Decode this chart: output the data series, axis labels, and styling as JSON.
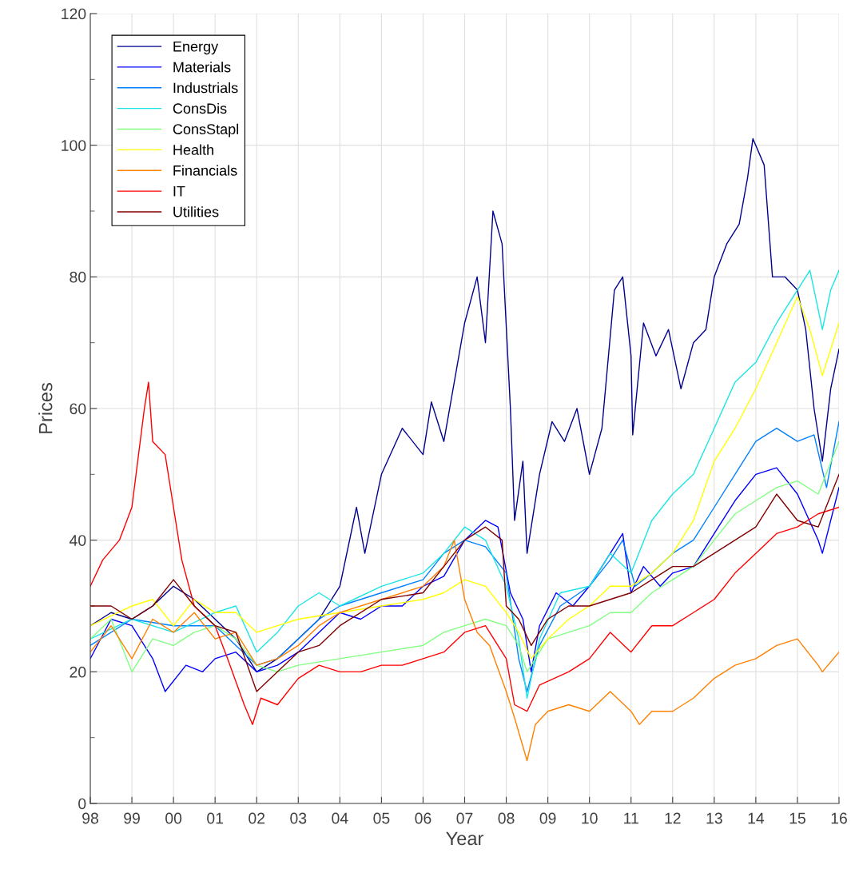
{
  "chart_data": {
    "type": "line",
    "xlabel": "Year",
    "ylabel": "Prices",
    "xlim": [
      1998,
      2016
    ],
    "ylim": [
      0,
      120
    ],
    "xticks": [
      {
        "value": 1998,
        "label": "98"
      },
      {
        "value": 1999,
        "label": "99"
      },
      {
        "value": 2000,
        "label": "00"
      },
      {
        "value": 2001,
        "label": "01"
      },
      {
        "value": 2002,
        "label": "02"
      },
      {
        "value": 2003,
        "label": "03"
      },
      {
        "value": 2004,
        "label": "04"
      },
      {
        "value": 2005,
        "label": "05"
      },
      {
        "value": 2006,
        "label": "06"
      },
      {
        "value": 2007,
        "label": "07"
      },
      {
        "value": 2008,
        "label": "08"
      },
      {
        "value": 2009,
        "label": "09"
      },
      {
        "value": 2010,
        "label": "10"
      },
      {
        "value": 2011,
        "label": "11"
      },
      {
        "value": 2012,
        "label": "12"
      },
      {
        "value": 2013,
        "label": "13"
      },
      {
        "value": 2014,
        "label": "14"
      },
      {
        "value": 2015,
        "label": "15"
      },
      {
        "value": 2016,
        "label": "16"
      }
    ],
    "yticks": [
      0,
      {
        "value": 10,
        "label": null
      },
      20,
      {
        "value": 30,
        "label": null
      },
      40,
      {
        "value": 50,
        "label": null
      },
      60,
      {
        "value": 70,
        "label": null
      },
      80,
      {
        "value": 90,
        "label": null
      },
      100,
      {
        "value": 110,
        "label": null
      },
      120
    ],
    "grid": true,
    "legend": "top left",
    "marker": "none",
    "line_style": "solid",
    "series": [
      {
        "name": "Energy",
        "color": "#00008f",
        "x": [
          1998,
          1998.5,
          1999,
          1999.5,
          2000,
          2000.5,
          2001,
          2001.5,
          2002,
          2002.5,
          2003,
          2003.5,
          2004,
          2004.4,
          2004.6,
          2005,
          2005.5,
          2006,
          2006.2,
          2006.5,
          2007,
          2007.3,
          2007.5,
          2007.68,
          2007.9,
          2008.1,
          2008.2,
          2008.4,
          2008.5,
          2008.8,
          2009.1,
          2009.4,
          2009.7,
          2010,
          2010.3,
          2010.6,
          2010.8,
          2011.0,
          2011.04,
          2011.3,
          2011.6,
          2011.9,
          2012.2,
          2012.5,
          2012.8,
          2013,
          2013.3,
          2013.6,
          2013.8,
          2013.93,
          2014.2,
          2014.4,
          2014.7,
          2015,
          2015.2,
          2015.4,
          2015.6,
          2015.8,
          2016
        ],
        "values": [
          27,
          29,
          28,
          30,
          33,
          31,
          28,
          25,
          20,
          22,
          25,
          28,
          33,
          45,
          38,
          50,
          57,
          53,
          61,
          55,
          73,
          80,
          70,
          90,
          85,
          60,
          43,
          52,
          38,
          50,
          58,
          55,
          60,
          50,
          57,
          78,
          80,
          68,
          56,
          73,
          68,
          72,
          63,
          70,
          72,
          80,
          85,
          88,
          95,
          101,
          97,
          80,
          80,
          78,
          72,
          60,
          52,
          63,
          69
        ]
      },
      {
        "name": "Materials",
        "color": "#0000ff",
        "x": [
          1998,
          1998.5,
          1999,
          1999.5,
          1999.8,
          2000.3,
          2000.7,
          2001,
          2001.5,
          2002,
          2002.5,
          2003,
          2003.5,
          2004,
          2004.5,
          2005,
          2005.5,
          2006,
          2006.5,
          2007,
          2007.5,
          2007.8,
          2008.1,
          2008.4,
          2008.6,
          2008.8,
          2009.2,
          2009.6,
          2010,
          2010.5,
          2010.8,
          2011.0,
          2011.3,
          2011.7,
          2012,
          2012.5,
          2013,
          2013.5,
          2014,
          2014.5,
          2015,
          2015.5,
          2015.6,
          2016
        ],
        "values": [
          22,
          28,
          27,
          22,
          17,
          21,
          20,
          22,
          23,
          20,
          21,
          23,
          26,
          29,
          28,
          30,
          30,
          33,
          34.5,
          40,
          43,
          42,
          32,
          28,
          20,
          27,
          32,
          30,
          33,
          38,
          41,
          32,
          36,
          33,
          35,
          36,
          41,
          46,
          50,
          51,
          47,
          40,
          38,
          48
        ]
      },
      {
        "name": "Industrials",
        "color": "#0080ff",
        "x": [
          1998,
          1999,
          2000,
          2001,
          2002,
          2002.5,
          2003,
          2003.5,
          2004,
          2005,
          2006,
          2006.5,
          2007,
          2007.5,
          2008,
          2008.3,
          2008.5,
          2008.8,
          2009.3,
          2010,
          2010.5,
          2010.8,
          2011.1,
          2011.5,
          2012,
          2012.5,
          2013,
          2013.5,
          2014,
          2014.5,
          2015,
          2015.4,
          2015.7,
          2016
        ],
        "values": [
          24,
          28,
          27,
          27,
          21,
          22,
          25,
          28,
          30,
          32,
          34,
          38,
          40,
          39,
          35,
          22,
          17,
          24,
          30,
          33,
          37,
          40,
          33,
          35,
          38,
          40,
          45,
          50,
          55,
          57,
          55,
          56,
          48,
          58
        ]
      },
      {
        "name": "ConsDis",
        "color": "#1ae5e5",
        "x": [
          1998,
          1999,
          2000,
          2001,
          2001.5,
          2002,
          2002.5,
          2003,
          2003.5,
          2004,
          2005,
          2006,
          2006.5,
          2007,
          2007.5,
          2008,
          2008.3,
          2008.5,
          2008.8,
          2009.3,
          2010,
          2010.5,
          2011,
          2011.5,
          2012,
          2012.5,
          2013,
          2013.5,
          2014,
          2014.5,
          2015,
          2015.3,
          2015.6,
          2015.8,
          2016
        ],
        "values": [
          25,
          28,
          26,
          29,
          30,
          23,
          26,
          30,
          32,
          30,
          33,
          35,
          38,
          42,
          40,
          33,
          25,
          16,
          25,
          32,
          33,
          38,
          35,
          43,
          47,
          50,
          57,
          64,
          67,
          73,
          78,
          81,
          72,
          78,
          81
        ]
      },
      {
        "name": "ConsStapl",
        "color": "#80ff80",
        "x": [
          1998,
          1998.5,
          1999,
          1999.5,
          2000,
          2000.5,
          2001,
          2001.5,
          2002,
          2002.5,
          2003,
          2004,
          2005,
          2006,
          2006.5,
          2007,
          2007.5,
          2008,
          2008.3,
          2008.5,
          2009,
          2009.5,
          2010,
          2010.5,
          2011,
          2011.5,
          2012,
          2012.5,
          2013,
          2013.5,
          2014,
          2014.5,
          2015,
          2015.5,
          2016
        ],
        "values": [
          25,
          28,
          20,
          25,
          24,
          26,
          27,
          25,
          21,
          20,
          21,
          22,
          23,
          24,
          26,
          27,
          28,
          27,
          24,
          20,
          25,
          26,
          27,
          29,
          29,
          32,
          34,
          36,
          40,
          44,
          46,
          48,
          49,
          47,
          55
        ]
      },
      {
        "name": "Health",
        "color": "#ffff00",
        "x": [
          1998,
          1999,
          1999.5,
          2000,
          2000.5,
          2001,
          2001.5,
          2002,
          2002.5,
          2003,
          2004,
          2005,
          2006,
          2006.5,
          2007,
          2007.5,
          2008,
          2008.3,
          2008.6,
          2009,
          2009.5,
          2010,
          2010.5,
          2011,
          2011.5,
          2012,
          2012.5,
          2013,
          2013.5,
          2014,
          2014.5,
          2015,
          2015.3,
          2015.6,
          2016
        ],
        "values": [
          27,
          30,
          31,
          27,
          31,
          29,
          29,
          26,
          27,
          28,
          29,
          30,
          31,
          32,
          34,
          33,
          29,
          26,
          22,
          25,
          28,
          30,
          33,
          33,
          35,
          38,
          43,
          52,
          57,
          63,
          70,
          77,
          72,
          65,
          73
        ]
      },
      {
        "name": "Financials",
        "color": "#ff8000",
        "x": [
          1998,
          1998.5,
          1999,
          1999.5,
          2000,
          2000.5,
          2001,
          2001.5,
          2002,
          2002.5,
          2003,
          2003.5,
          2004,
          2005,
          2006,
          2006.5,
          2006.75,
          2007,
          2007.3,
          2007.6,
          2008,
          2008.2,
          2008.5,
          2008.7,
          2009,
          2009.5,
          2010,
          2010.5,
          2011,
          2011.2,
          2011.5,
          2012,
          2012.5,
          2013,
          2013.5,
          2014,
          2014.5,
          2015,
          2015.5,
          2015.6,
          2016
        ],
        "values": [
          23,
          27,
          22,
          28,
          26,
          29,
          25,
          26,
          21,
          22,
          24,
          27,
          29,
          31,
          33,
          36,
          40,
          31,
          26,
          24,
          17,
          13,
          6.5,
          12,
          14,
          15,
          14,
          17,
          14,
          12,
          14,
          14,
          16,
          19,
          21,
          22,
          24,
          25,
          21,
          20,
          23
        ]
      },
      {
        "name": "IT",
        "color": "#ff0000",
        "x": [
          1998,
          1998.3,
          1998.7,
          1999,
          1999.2,
          1999.3,
          1999.4,
          1999.5,
          1999.8,
          2000,
          2000.2,
          2000.5,
          2001,
          2001.3,
          2001.7,
          2001.9,
          2002.1,
          2002.5,
          2003,
          2003.5,
          2004,
          2004.5,
          2005,
          2005.5,
          2006,
          2006.5,
          2007,
          2007.5,
          2008,
          2008.2,
          2008.5,
          2008.8,
          2009.5,
          2010,
          2010.5,
          2011,
          2011.5,
          2012,
          2012.5,
          2013,
          2013.5,
          2014,
          2014.5,
          2015,
          2015.5,
          2016
        ],
        "values": [
          33,
          37,
          40,
          45,
          55,
          60,
          64,
          55,
          53,
          45,
          37,
          30,
          27,
          22,
          15,
          12,
          16,
          15,
          19,
          21,
          20,
          20,
          21,
          21,
          22,
          23,
          26,
          27,
          22,
          15,
          14,
          18,
          20,
          22,
          26,
          23,
          27,
          27,
          29,
          31,
          35,
          38,
          41,
          42,
          44,
          45
        ]
      },
      {
        "name": "Utilities",
        "color": "#800000",
        "x": [
          1998,
          1998.5,
          1999,
          1999.5,
          2000,
          2000.5,
          2001,
          2001.5,
          2002,
          2002.5,
          2003,
          2003.5,
          2004,
          2005,
          2006,
          2006.5,
          2007,
          2007.5,
          2007.9,
          2008,
          2008.3,
          2008.6,
          2009,
          2009.5,
          2010,
          2010.5,
          2011,
          2011.5,
          2012,
          2012.5,
          2013,
          2013.5,
          2014,
          2014.5,
          2015,
          2015.5,
          2016
        ],
        "values": [
          30,
          30,
          28,
          30,
          34,
          30,
          27,
          26,
          17,
          20,
          23,
          24,
          27,
          31,
          32,
          36,
          40,
          42,
          40,
          30,
          28,
          24,
          28,
          30,
          30,
          31,
          32,
          34,
          36,
          36,
          38,
          40,
          42,
          47,
          43,
          42,
          50
        ]
      }
    ]
  }
}
